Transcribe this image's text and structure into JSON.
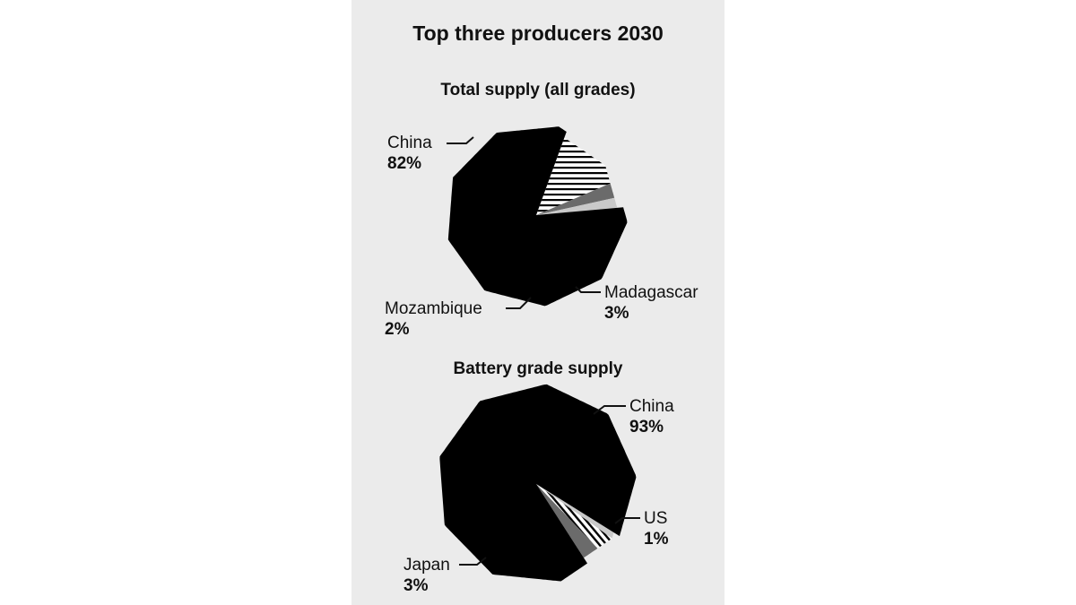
{
  "title": "Top three producers 2030",
  "chart_data": [
    {
      "type": "pie",
      "title": "Total supply (all grades)",
      "unit": "%",
      "slices": [
        {
          "name": "",
          "value": 13,
          "fill": "hatch-horizontal"
        },
        {
          "name": "Madagascar",
          "value": 3,
          "label": "3%",
          "fill": "#6b6b6b"
        },
        {
          "name": "Mozambique",
          "value": 2,
          "label": "2%",
          "fill": "#c9c9c9"
        },
        {
          "name": "China",
          "value": 82,
          "label": "82%",
          "fill": "#000000"
        }
      ]
    },
    {
      "type": "pie",
      "title": "Battery grade supply",
      "unit": "%",
      "slices": [
        {
          "name": "US",
          "value": 1,
          "label": "1%",
          "fill": "#c9c9c9"
        },
        {
          "name": "",
          "value": 3,
          "fill": "hatch-diagonal"
        },
        {
          "name": "Japan",
          "value": 3,
          "label": "3%",
          "fill": "#6b6b6b"
        },
        {
          "name": "China",
          "value": 93,
          "label": "93%",
          "fill": "#000000"
        }
      ]
    }
  ],
  "colors": {
    "panel_background": "#ebebeb",
    "text": "#111111"
  }
}
